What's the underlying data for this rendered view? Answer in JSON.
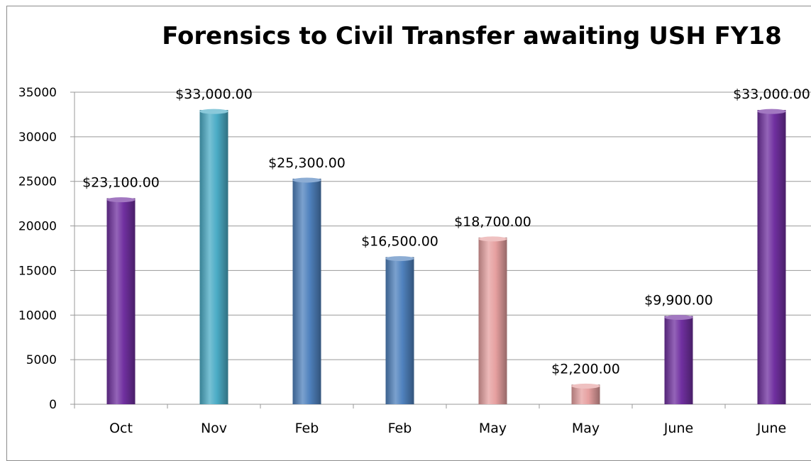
{
  "chart_data": {
    "type": "bar",
    "title": "Forensics to Civil Transfer  awaiting USH FY18",
    "xlabel": "",
    "ylabel": "",
    "categories": [
      "Oct",
      "Nov",
      "Feb",
      "Feb",
      "May",
      "May",
      "June",
      "June"
    ],
    "values": [
      23100,
      33000,
      25300,
      16500,
      18700,
      2200,
      9900,
      33000
    ],
    "data_labels": [
      "$23,100.00",
      "$33,000.00",
      "$25,300.00",
      "$16,500.00",
      "$18,700.00",
      "$2,200.00",
      "$9,900.00",
      "$33,000.00"
    ],
    "bar_colors": [
      "#7030a0",
      "#4bacc6",
      "#4f81bd",
      "#4f81bd",
      "#e6a0a0",
      "#e6a0a0",
      "#7030a0",
      "#7030a0"
    ],
    "ylim": [
      0,
      35000
    ],
    "yticks": [
      0,
      5000,
      10000,
      15000,
      20000,
      25000,
      30000,
      35000
    ],
    "grid": true,
    "legend": "none"
  },
  "colors": {
    "gridline": "#999999",
    "axis_text": "#000000"
  }
}
